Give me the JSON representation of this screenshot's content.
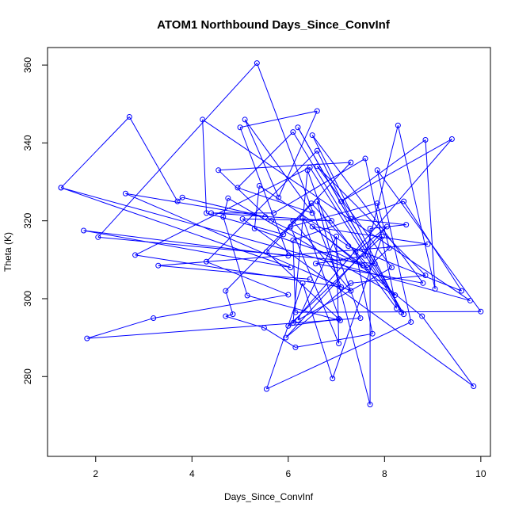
{
  "chart_data": {
    "type": "line",
    "title": "ATOM1 Northbound Days_Since_ConvInf",
    "xlabel": "Days_Since_ConvInf",
    "ylabel": "Theta (K)",
    "xlim": [
      1.0,
      10.2
    ],
    "ylim": [
      259.5,
      364.5
    ],
    "xticks": [
      2,
      4,
      6,
      8,
      10
    ],
    "yticks": [
      280,
      300,
      320,
      340,
      360
    ],
    "grid": false,
    "legend": "none",
    "series": [
      {
        "color": "#0000ff",
        "marker": "open-circle",
        "points": [
          [
            1.28,
            328.5
          ],
          [
            9.78,
            299.5
          ],
          [
            4.22,
            346.0
          ],
          [
            4.3,
            322.0
          ],
          [
            5.9,
            316.5
          ],
          [
            6.1,
            320.0
          ],
          [
            7.3,
            302.0
          ],
          [
            2.62,
            327.0
          ],
          [
            5.52,
            321.0
          ],
          [
            3.8,
            326.0
          ],
          [
            3.7,
            325.0
          ],
          [
            2.7,
            346.7
          ],
          [
            1.28,
            328.5
          ],
          [
            6.05,
            308.0
          ],
          [
            1.75,
            317.5
          ],
          [
            6.0,
            311.0
          ],
          [
            5.0,
            344.0
          ],
          [
            6.6,
            348.2
          ],
          [
            5.8,
            326.0
          ],
          [
            5.1,
            346.0
          ],
          [
            6.5,
            322.0
          ],
          [
            4.95,
            328.5
          ],
          [
            6.1,
            342.8
          ],
          [
            8.4,
            296.0
          ],
          [
            6.2,
            344.0
          ],
          [
            7.8,
            309.0
          ],
          [
            2.05,
            315.8
          ],
          [
            5.35,
            360.5
          ],
          [
            7.1,
            303.0
          ],
          [
            2.82,
            311.2
          ],
          [
            6.45,
            333.7
          ],
          [
            8.35,
            296.5
          ],
          [
            6.5,
            342.0
          ],
          [
            8.8,
            304.0
          ],
          [
            6.57,
            309.0
          ],
          [
            7.6,
            311.0
          ],
          [
            8.28,
            344.5
          ],
          [
            9.05,
            302.5
          ],
          [
            8.85,
            340.8
          ],
          [
            7.1,
            325.0
          ],
          [
            9.4,
            341.0
          ],
          [
            6.1,
            293.8
          ],
          [
            6.4,
            333.0
          ],
          [
            7.5,
            295.0
          ],
          [
            1.82,
            289.8
          ],
          [
            3.2,
            295.0
          ],
          [
            6.0,
            301.0
          ],
          [
            4.3,
            309.5
          ],
          [
            6.6,
            338.0
          ],
          [
            7.3,
            320.5
          ],
          [
            8.45,
            319.0
          ],
          [
            7.7,
            318.0
          ],
          [
            7.7,
            272.8
          ],
          [
            6.6,
            325.0
          ],
          [
            8.25,
            297.5
          ],
          [
            7.6,
            336.0
          ],
          [
            5.7,
            322.0
          ],
          [
            4.4,
            322.0
          ],
          [
            6.9,
            320.0
          ],
          [
            5.05,
            320.5
          ],
          [
            9.85,
            277.5
          ],
          [
            8.78,
            295.5
          ],
          [
            6.3,
            320.7
          ],
          [
            7.08,
            294.4
          ],
          [
            5.15,
            300.8
          ],
          [
            4.65,
            321.0
          ],
          [
            4.75,
            325.8
          ],
          [
            8.22,
            300.9
          ],
          [
            6.48,
            324.5
          ],
          [
            4.7,
            302.0
          ],
          [
            4.85,
            296.0
          ],
          [
            4.7,
            295.5
          ],
          [
            5.5,
            292.5
          ],
          [
            6.15,
            287.5
          ],
          [
            7.75,
            291.0
          ],
          [
            7.4,
            312.0
          ],
          [
            8.05,
            318.5
          ],
          [
            5.95,
            290.0
          ],
          [
            7.3,
            304.0
          ],
          [
            8.85,
            306.0
          ],
          [
            6.6,
            334.0
          ],
          [
            8.15,
            308.0
          ],
          [
            6.2,
            294.5
          ],
          [
            7.0,
            316.0
          ],
          [
            7.05,
            288.5
          ],
          [
            6.05,
            318.5
          ],
          [
            7.85,
            324.5
          ],
          [
            8.1,
            313.0
          ],
          [
            7.65,
            308.0
          ],
          [
            5.3,
            318.0
          ],
          [
            5.4,
            329.0
          ],
          [
            7.25,
            313.5
          ],
          [
            9.6,
            302.0
          ],
          [
            8.4,
            325.0
          ],
          [
            6.1,
            315.0
          ],
          [
            6.15,
            296.5
          ],
          [
            10.0,
            296.7
          ],
          [
            7.85,
            333.0
          ],
          [
            8.55,
            294.0
          ],
          [
            5.55,
            276.8
          ],
          [
            6.3,
            304.0
          ],
          [
            6.92,
            279.5
          ],
          [
            7.95,
            316.0
          ],
          [
            6.0,
            293.0
          ],
          [
            7.05,
            294.8
          ],
          [
            5.55,
            312.0
          ],
          [
            7.3,
            335.0
          ],
          [
            4.55,
            333.0
          ],
          [
            5.65,
            320.0
          ],
          [
            7.55,
            308.5
          ],
          [
            6.5,
            318.5
          ],
          [
            8.9,
            314.0
          ],
          [
            3.3,
            308.5
          ],
          [
            6.45,
            305.0
          ]
        ]
      }
    ]
  }
}
